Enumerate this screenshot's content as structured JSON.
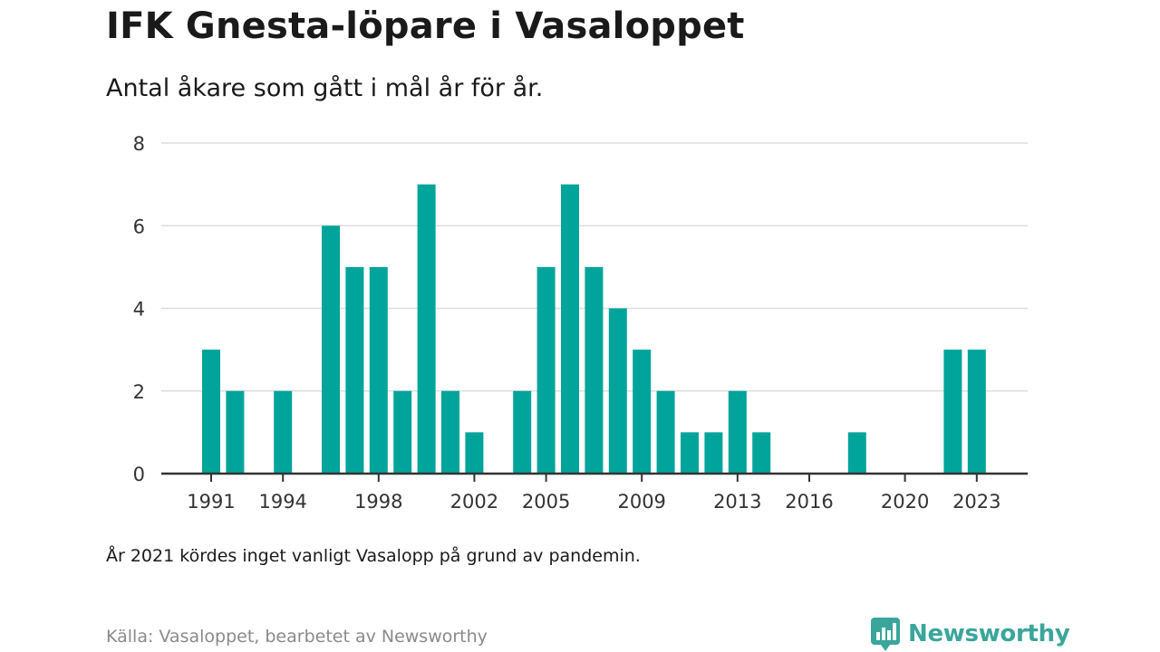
{
  "title": "IFK Gnesta-löpare i Vasaloppet",
  "subtitle": "Antal åkare som gått i mål år för år.",
  "note": "År 2021 kördes inget vanligt Vasalopp på grund av pandemin.",
  "source": "Källa: Vasaloppet, bearbetet av Newsworthy",
  "brand": {
    "name": "Newsworthy",
    "logo_icon": "newsworthy-chart-icon"
  },
  "colors": {
    "bar": "#00a49a",
    "grid": "#dddddd",
    "axis": "#333333",
    "brand": "#3aa59b"
  },
  "chart_data": {
    "type": "bar",
    "x": [
      1991,
      1992,
      1993,
      1994,
      1995,
      1996,
      1997,
      1998,
      1999,
      2000,
      2001,
      2002,
      2003,
      2004,
      2005,
      2006,
      2007,
      2008,
      2009,
      2010,
      2011,
      2012,
      2013,
      2014,
      2015,
      2016,
      2017,
      2018,
      2019,
      2020,
      2021,
      2022,
      2023
    ],
    "values": [
      3,
      2,
      0,
      2,
      0,
      6,
      5,
      5,
      2,
      7,
      2,
      1,
      0,
      2,
      5,
      7,
      5,
      4,
      3,
      2,
      1,
      1,
      2,
      1,
      0,
      0,
      0,
      1,
      0,
      0,
      0,
      3,
      3
    ],
    "x_ticks": [
      1991,
      1994,
      1998,
      2002,
      2005,
      2009,
      2013,
      2016,
      2020,
      2023
    ],
    "y_ticks": [
      0,
      2,
      4,
      6,
      8
    ],
    "ylim": [
      0,
      8
    ],
    "xlim": [
      1990,
      2024
    ],
    "grid": true,
    "legend": "none"
  }
}
